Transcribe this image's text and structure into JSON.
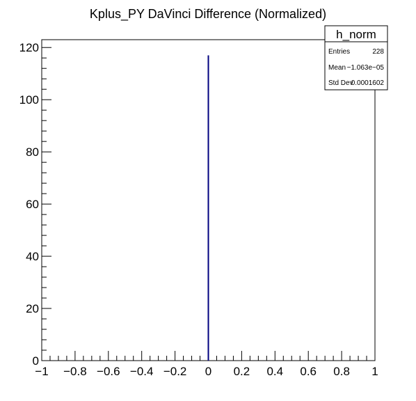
{
  "chart_data": {
    "type": "bar",
    "title": "Kplus_PY DaVinci Difference (Normalized)",
    "xlabel": "",
    "ylabel": "",
    "xlim": [
      -1,
      1
    ],
    "ylim": [
      0,
      123
    ],
    "x_ticks": [
      -1,
      -0.8,
      -0.6,
      -0.4,
      -0.2,
      0,
      0.2,
      0.4,
      0.6,
      0.8,
      1
    ],
    "x_tick_labels": [
      "−1",
      "−0.8",
      "−0.6",
      "−0.4",
      "−0.2",
      "0",
      "0.2",
      "0.4",
      "0.6",
      "0.8",
      "1"
    ],
    "y_ticks": [
      0,
      20,
      40,
      60,
      80,
      100,
      120
    ],
    "y_tick_labels": [
      "0",
      "20",
      "40",
      "60",
      "80",
      "100",
      "120"
    ],
    "grid": false,
    "series": [
      {
        "x": [
          0.0
        ],
        "values": [
          117
        ],
        "color": "#00007f"
      }
    ],
    "stats_box": {
      "title": "h_norm",
      "placement": "top-right",
      "rows": [
        {
          "label": "Entries",
          "value": "228"
        },
        {
          "label": "Mean",
          "value": "−1.063e−05"
        },
        {
          "label": "Std Dev",
          "value": "0.0001602"
        }
      ]
    }
  }
}
